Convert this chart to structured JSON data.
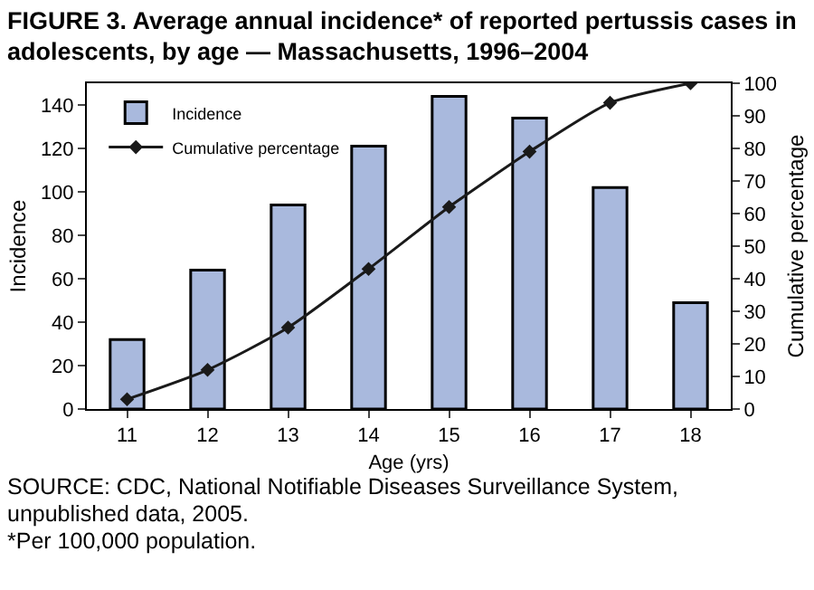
{
  "chart_data": {
    "type": "bar",
    "title": "FIGURE 3. Average annual incidence* of reported pertussis cases in adolescents, by age — Massachusetts, 1996–2004",
    "xlabel": "Age (yrs)",
    "ylabel": "Incidence",
    "y2label": "Cumulative percentage",
    "categories": [
      "11",
      "12",
      "13",
      "14",
      "15",
      "16",
      "17",
      "18"
    ],
    "series": [
      {
        "name": "Incidence",
        "color": "#a9b9dd",
        "values": [
          32,
          64,
          94,
          121,
          144,
          134,
          102,
          49
        ]
      },
      {
        "name": "Cumulative percentage",
        "type": "line",
        "axis": "y2",
        "color": "#1a1a1a",
        "marker": "diamond",
        "values": [
          3,
          12,
          25,
          43,
          62,
          79,
          94,
          100
        ]
      }
    ],
    "ylim": [
      0,
      150
    ],
    "yticks": [
      0,
      20,
      40,
      60,
      80,
      100,
      120,
      140
    ],
    "y2lim": [
      0,
      100
    ],
    "y2ticks": [
      0,
      10,
      20,
      30,
      40,
      50,
      60,
      70,
      80,
      90,
      100
    ],
    "legend": "top left",
    "grid": false,
    "annotations": [
      "SOURCE: CDC, National Notifiable Diseases Surveillance System, unpublished data, 2005.",
      "*Per 100,000 population."
    ]
  }
}
